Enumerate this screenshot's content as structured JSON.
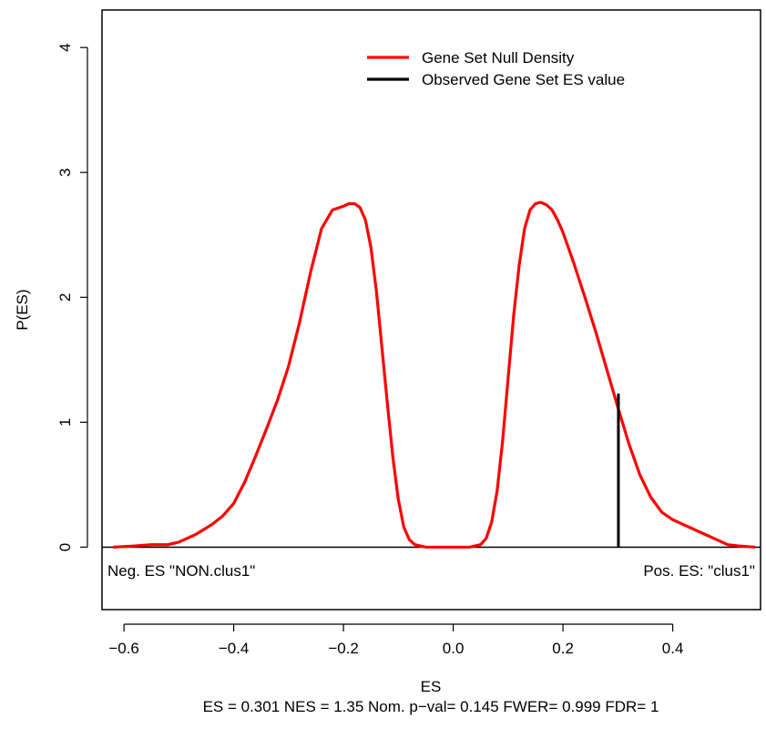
{
  "chart_data": {
    "type": "line",
    "xlabel": "ES",
    "ylabel": "P(ES)",
    "subtitle": "ES = 0.301  NES = 1.35 Nom. p−val= 0.145 FWER= 0.999 FDR= 1",
    "xlim": [
      -0.64,
      0.56
    ],
    "ylim": [
      -0.5,
      4.3
    ],
    "x_ticks": [
      -0.6,
      -0.4,
      -0.2,
      0.0,
      0.2,
      0.4
    ],
    "x_tick_labels": [
      "−0.6",
      "−0.4",
      "−0.2",
      "0.0",
      "0.2",
      "0.4"
    ],
    "y_ticks": [
      0,
      1,
      2,
      3,
      4
    ],
    "y_tick_labels": [
      "0",
      "1",
      "2",
      "3",
      "4"
    ],
    "legend_position": "top-right",
    "series": [
      {
        "name": "Gene Set Null Density",
        "color": "#ff0000",
        "x": [
          -0.62,
          -0.58,
          -0.55,
          -0.52,
          -0.5,
          -0.47,
          -0.44,
          -0.42,
          -0.4,
          -0.38,
          -0.36,
          -0.34,
          -0.32,
          -0.3,
          -0.28,
          -0.26,
          -0.24,
          -0.22,
          -0.2,
          -0.19,
          -0.18,
          -0.17,
          -0.16,
          -0.15,
          -0.14,
          -0.13,
          -0.12,
          -0.11,
          -0.1,
          -0.09,
          -0.08,
          -0.07,
          -0.06,
          -0.05,
          -0.03,
          0.0,
          0.03,
          0.05,
          0.06,
          0.07,
          0.08,
          0.09,
          0.1,
          0.11,
          0.12,
          0.13,
          0.14,
          0.15,
          0.16,
          0.17,
          0.18,
          0.19,
          0.2,
          0.22,
          0.24,
          0.26,
          0.28,
          0.3,
          0.32,
          0.34,
          0.36,
          0.38,
          0.4,
          0.42,
          0.44,
          0.46,
          0.48,
          0.5,
          0.52,
          0.55
        ],
        "y": [
          0.0,
          0.01,
          0.02,
          0.02,
          0.04,
          0.1,
          0.18,
          0.25,
          0.35,
          0.52,
          0.73,
          0.95,
          1.18,
          1.45,
          1.8,
          2.2,
          2.55,
          2.7,
          2.73,
          2.75,
          2.75,
          2.72,
          2.62,
          2.4,
          2.05,
          1.6,
          1.15,
          0.72,
          0.38,
          0.16,
          0.06,
          0.02,
          0.01,
          0.0,
          0.0,
          0.0,
          0.0,
          0.02,
          0.07,
          0.2,
          0.45,
          0.85,
          1.35,
          1.85,
          2.25,
          2.55,
          2.7,
          2.75,
          2.76,
          2.74,
          2.7,
          2.62,
          2.52,
          2.27,
          2.0,
          1.72,
          1.42,
          1.12,
          0.83,
          0.58,
          0.4,
          0.28,
          0.22,
          0.18,
          0.14,
          0.1,
          0.06,
          0.02,
          0.01,
          0.0
        ]
      },
      {
        "name": "Observed Gene Set ES value",
        "color": "#000000",
        "x": [
          0.301,
          0.301
        ],
        "y": [
          0.0,
          1.23
        ]
      }
    ],
    "annotations": [
      {
        "text": "Neg. ES \"NON.clus1\"",
        "x": -0.63,
        "y": -0.23,
        "align": "start"
      },
      {
        "text": "Pos. ES: \"clus1\"",
        "x": 0.55,
        "y": -0.23,
        "align": "end"
      }
    ],
    "baseline_y": 0
  }
}
